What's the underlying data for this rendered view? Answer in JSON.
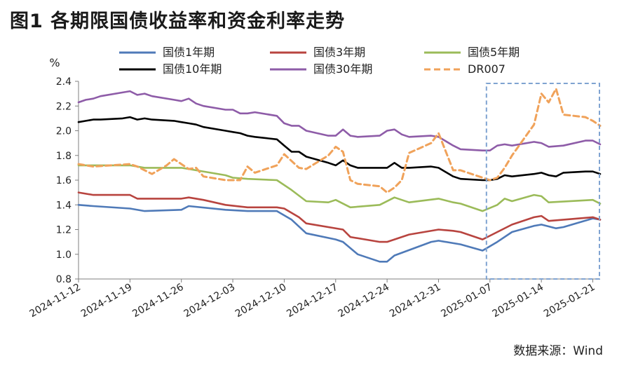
{
  "figure": {
    "title": "图1  各期限国债收益率和资金利率走势",
    "source": "数据来源：Wind"
  },
  "chart_data": {
    "type": "line",
    "ylabel": "%",
    "ylim": [
      0.8,
      2.4
    ],
    "yticks": [
      "0.8",
      "1.0",
      "1.2",
      "1.4",
      "1.6",
      "1.8",
      "2.0",
      "2.2",
      "2.4"
    ],
    "xlim": [
      "2024-11-12",
      "2025-01-22"
    ],
    "xticks": [
      "2024-11-12",
      "2024-11-19",
      "2024-11-26",
      "2024-12-03",
      "2024-12-10",
      "2024-12-17",
      "2024-12-24",
      "2024-12-31",
      "2025-01-07",
      "2025-01-14",
      "2025-01-21"
    ],
    "grid": false,
    "legend_position": "top",
    "highlight_box": {
      "x_from": "2025-01-07",
      "x_to": "2025-01-22",
      "style": "dashed",
      "color": "#7fa3d1"
    },
    "series": [
      {
        "name": "国债1年期",
        "color": "#4f7ab8",
        "dash": "solid",
        "points": [
          [
            "2024-11-12",
            1.4
          ],
          [
            "2024-11-14",
            1.39
          ],
          [
            "2024-11-19",
            1.37
          ],
          [
            "2024-11-21",
            1.35
          ],
          [
            "2024-11-26",
            1.36
          ],
          [
            "2024-11-27",
            1.39
          ],
          [
            "2024-12-02",
            1.36
          ],
          [
            "2024-12-05",
            1.35
          ],
          [
            "2024-12-09",
            1.35
          ],
          [
            "2024-12-11",
            1.28
          ],
          [
            "2024-12-13",
            1.17
          ],
          [
            "2024-12-17",
            1.12
          ],
          [
            "2024-12-18",
            1.1
          ],
          [
            "2024-12-20",
            1.0
          ],
          [
            "2024-12-23",
            0.94
          ],
          [
            "2024-12-24",
            0.94
          ],
          [
            "2024-12-25",
            0.99
          ],
          [
            "2024-12-30",
            1.1
          ],
          [
            "2024-12-31",
            1.11
          ],
          [
            "2025-01-02",
            1.09
          ],
          [
            "2025-01-03",
            1.08
          ],
          [
            "2025-01-06",
            1.03
          ],
          [
            "2025-01-08",
            1.1
          ],
          [
            "2025-01-10",
            1.18
          ],
          [
            "2025-01-13",
            1.23
          ],
          [
            "2025-01-14",
            1.24
          ],
          [
            "2025-01-16",
            1.21
          ],
          [
            "2025-01-17",
            1.22
          ],
          [
            "2025-01-21",
            1.29
          ],
          [
            "2025-01-22",
            1.28
          ]
        ]
      },
      {
        "name": "国债3年期",
        "color": "#b8443f",
        "dash": "solid",
        "points": [
          [
            "2024-11-12",
            1.5
          ],
          [
            "2024-11-14",
            1.48
          ],
          [
            "2024-11-19",
            1.48
          ],
          [
            "2024-11-20",
            1.45
          ],
          [
            "2024-11-26",
            1.45
          ],
          [
            "2024-11-27",
            1.46
          ],
          [
            "2024-11-29",
            1.44
          ],
          [
            "2024-12-02",
            1.4
          ],
          [
            "2024-12-05",
            1.38
          ],
          [
            "2024-12-09",
            1.38
          ],
          [
            "2024-12-10",
            1.37
          ],
          [
            "2024-12-12",
            1.3
          ],
          [
            "2024-12-13",
            1.25
          ],
          [
            "2024-12-18",
            1.2
          ],
          [
            "2024-12-19",
            1.14
          ],
          [
            "2024-12-23",
            1.1
          ],
          [
            "2024-12-24",
            1.1
          ],
          [
            "2024-12-25",
            1.12
          ],
          [
            "2024-12-27",
            1.16
          ],
          [
            "2024-12-31",
            1.2
          ],
          [
            "2025-01-02",
            1.19
          ],
          [
            "2025-01-03",
            1.18
          ],
          [
            "2025-01-06",
            1.12
          ],
          [
            "2025-01-08",
            1.18
          ],
          [
            "2025-01-10",
            1.24
          ],
          [
            "2025-01-13",
            1.3
          ],
          [
            "2025-01-14",
            1.31
          ],
          [
            "2025-01-15",
            1.27
          ],
          [
            "2025-01-17",
            1.28
          ],
          [
            "2025-01-21",
            1.3
          ],
          [
            "2025-01-22",
            1.28
          ]
        ]
      },
      {
        "name": "国债5年期",
        "color": "#9bbb59",
        "dash": "solid",
        "points": [
          [
            "2024-11-12",
            1.72
          ],
          [
            "2024-11-14",
            1.72
          ],
          [
            "2024-11-19",
            1.72
          ],
          [
            "2024-11-21",
            1.7
          ],
          [
            "2024-11-26",
            1.7
          ],
          [
            "2024-11-27",
            1.69
          ],
          [
            "2024-12-02",
            1.64
          ],
          [
            "2024-12-03",
            1.62
          ],
          [
            "2024-12-05",
            1.61
          ],
          [
            "2024-12-09",
            1.6
          ],
          [
            "2024-12-11",
            1.52
          ],
          [
            "2024-12-13",
            1.43
          ],
          [
            "2024-12-16",
            1.42
          ],
          [
            "2024-12-17",
            1.44
          ],
          [
            "2024-12-19",
            1.38
          ],
          [
            "2024-12-23",
            1.4
          ],
          [
            "2024-12-25",
            1.46
          ],
          [
            "2024-12-27",
            1.42
          ],
          [
            "2024-12-31",
            1.45
          ],
          [
            "2025-01-02",
            1.42
          ],
          [
            "2025-01-03",
            1.41
          ],
          [
            "2025-01-06",
            1.35
          ],
          [
            "2025-01-08",
            1.4
          ],
          [
            "2025-01-09",
            1.45
          ],
          [
            "2025-01-10",
            1.43
          ],
          [
            "2025-01-13",
            1.48
          ],
          [
            "2025-01-14",
            1.47
          ],
          [
            "2025-01-15",
            1.42
          ],
          [
            "2025-01-21",
            1.44
          ],
          [
            "2025-01-22",
            1.41
          ]
        ]
      },
      {
        "name": "国债10年期",
        "color": "#000000",
        "dash": "solid",
        "points": [
          [
            "2024-11-12",
            2.07
          ],
          [
            "2024-11-13",
            2.08
          ],
          [
            "2024-11-14",
            2.09
          ],
          [
            "2024-11-15",
            2.09
          ],
          [
            "2024-11-18",
            2.1
          ],
          [
            "2024-11-19",
            2.11
          ],
          [
            "2024-11-20",
            2.09
          ],
          [
            "2024-11-21",
            2.1
          ],
          [
            "2024-11-22",
            2.09
          ],
          [
            "2024-11-25",
            2.08
          ],
          [
            "2024-11-26",
            2.07
          ],
          [
            "2024-11-27",
            2.06
          ],
          [
            "2024-11-28",
            2.05
          ],
          [
            "2024-11-29",
            2.03
          ],
          [
            "2024-12-02",
            2.0
          ],
          [
            "2024-12-03",
            1.99
          ],
          [
            "2024-12-04",
            1.98
          ],
          [
            "2024-12-05",
            1.96
          ],
          [
            "2024-12-06",
            1.95
          ],
          [
            "2024-12-09",
            1.93
          ],
          [
            "2024-12-10",
            1.88
          ],
          [
            "2024-12-11",
            1.83
          ],
          [
            "2024-12-12",
            1.83
          ],
          [
            "2024-12-13",
            1.79
          ],
          [
            "2024-12-16",
            1.74
          ],
          [
            "2024-12-17",
            1.72
          ],
          [
            "2024-12-18",
            1.76
          ],
          [
            "2024-12-19",
            1.72
          ],
          [
            "2024-12-20",
            1.7
          ],
          [
            "2024-12-23",
            1.7
          ],
          [
            "2024-12-24",
            1.7
          ],
          [
            "2024-12-25",
            1.74
          ],
          [
            "2024-12-26",
            1.7
          ],
          [
            "2024-12-27",
            1.7
          ],
          [
            "2024-12-30",
            1.71
          ],
          [
            "2024-12-31",
            1.7
          ],
          [
            "2025-01-02",
            1.63
          ],
          [
            "2025-01-03",
            1.61
          ],
          [
            "2025-01-06",
            1.6
          ],
          [
            "2025-01-07",
            1.6
          ],
          [
            "2025-01-08",
            1.61
          ],
          [
            "2025-01-09",
            1.64
          ],
          [
            "2025-01-10",
            1.63
          ],
          [
            "2025-01-13",
            1.65
          ],
          [
            "2025-01-14",
            1.66
          ],
          [
            "2025-01-15",
            1.64
          ],
          [
            "2025-01-16",
            1.63
          ],
          [
            "2025-01-17",
            1.66
          ],
          [
            "2025-01-20",
            1.67
          ],
          [
            "2025-01-21",
            1.67
          ],
          [
            "2025-01-22",
            1.65
          ]
        ]
      },
      {
        "name": "国债30年期",
        "color": "#8e5ca8",
        "dash": "solid",
        "points": [
          [
            "2024-11-12",
            2.23
          ],
          [
            "2024-11-13",
            2.25
          ],
          [
            "2024-11-14",
            2.26
          ],
          [
            "2024-11-15",
            2.28
          ],
          [
            "2024-11-18",
            2.31
          ],
          [
            "2024-11-19",
            2.32
          ],
          [
            "2024-11-20",
            2.29
          ],
          [
            "2024-11-21",
            2.3
          ],
          [
            "2024-11-22",
            2.28
          ],
          [
            "2024-11-25",
            2.25
          ],
          [
            "2024-11-26",
            2.24
          ],
          [
            "2024-11-27",
            2.26
          ],
          [
            "2024-11-28",
            2.22
          ],
          [
            "2024-11-29",
            2.2
          ],
          [
            "2024-12-02",
            2.17
          ],
          [
            "2024-12-03",
            2.17
          ],
          [
            "2024-12-04",
            2.14
          ],
          [
            "2024-12-05",
            2.14
          ],
          [
            "2024-12-06",
            2.15
          ],
          [
            "2024-12-09",
            2.12
          ],
          [
            "2024-12-10",
            2.06
          ],
          [
            "2024-12-11",
            2.04
          ],
          [
            "2024-12-12",
            2.04
          ],
          [
            "2024-12-13",
            2.0
          ],
          [
            "2024-12-16",
            1.96
          ],
          [
            "2024-12-17",
            1.96
          ],
          [
            "2024-12-18",
            2.01
          ],
          [
            "2024-12-19",
            1.96
          ],
          [
            "2024-12-20",
            1.95
          ],
          [
            "2024-12-23",
            1.96
          ],
          [
            "2024-12-24",
            2.0
          ],
          [
            "2024-12-25",
            2.01
          ],
          [
            "2024-12-26",
            1.97
          ],
          [
            "2024-12-27",
            1.95
          ],
          [
            "2024-12-30",
            1.96
          ],
          [
            "2024-12-31",
            1.95
          ],
          [
            "2025-01-02",
            1.88
          ],
          [
            "2025-01-03",
            1.85
          ],
          [
            "2025-01-06",
            1.84
          ],
          [
            "2025-01-07",
            1.84
          ],
          [
            "2025-01-08",
            1.88
          ],
          [
            "2025-01-09",
            1.89
          ],
          [
            "2025-01-10",
            1.88
          ],
          [
            "2025-01-13",
            1.91
          ],
          [
            "2025-01-14",
            1.9
          ],
          [
            "2025-01-15",
            1.87
          ],
          [
            "2025-01-17",
            1.88
          ],
          [
            "2025-01-20",
            1.92
          ],
          [
            "2025-01-21",
            1.92
          ],
          [
            "2025-01-22",
            1.89
          ]
        ]
      },
      {
        "name": "DR007",
        "color": "#f0a25a",
        "dash": "dashed",
        "points": [
          [
            "2024-11-12",
            1.73
          ],
          [
            "2024-11-14",
            1.71
          ],
          [
            "2024-11-19",
            1.73
          ],
          [
            "2024-11-20",
            1.71
          ],
          [
            "2024-11-22",
            1.65
          ],
          [
            "2024-11-24",
            1.72
          ],
          [
            "2024-11-25",
            1.77
          ],
          [
            "2024-11-26",
            1.73
          ],
          [
            "2024-11-27",
            1.69
          ],
          [
            "2024-11-28",
            1.7
          ],
          [
            "2024-11-29",
            1.63
          ],
          [
            "2024-12-02",
            1.6
          ],
          [
            "2024-12-04",
            1.6
          ],
          [
            "2024-12-05",
            1.71
          ],
          [
            "2024-12-06",
            1.66
          ],
          [
            "2024-12-09",
            1.72
          ],
          [
            "2024-12-10",
            1.81
          ],
          [
            "2024-12-12",
            1.7
          ],
          [
            "2024-12-13",
            1.69
          ],
          [
            "2024-12-16",
            1.8
          ],
          [
            "2024-12-17",
            1.87
          ],
          [
            "2024-12-18",
            1.83
          ],
          [
            "2024-12-19",
            1.6
          ],
          [
            "2024-12-20",
            1.57
          ],
          [
            "2024-12-23",
            1.55
          ],
          [
            "2024-12-24",
            1.5
          ],
          [
            "2024-12-25",
            1.54
          ],
          [
            "2024-12-26",
            1.6
          ],
          [
            "2024-12-27",
            1.82
          ],
          [
            "2024-12-30",
            1.9
          ],
          [
            "2024-12-31",
            1.98
          ],
          [
            "2025-01-02",
            1.68
          ],
          [
            "2025-01-03",
            1.68
          ],
          [
            "2025-01-06",
            1.62
          ],
          [
            "2025-01-07",
            1.6
          ],
          [
            "2025-01-08",
            1.62
          ],
          [
            "2025-01-09",
            1.7
          ],
          [
            "2025-01-10",
            1.8
          ],
          [
            "2025-01-13",
            2.05
          ],
          [
            "2025-01-14",
            2.3
          ],
          [
            "2025-01-15",
            2.23
          ],
          [
            "2025-01-16",
            2.34
          ],
          [
            "2025-01-17",
            2.13
          ],
          [
            "2025-01-20",
            2.11
          ],
          [
            "2025-01-21",
            2.08
          ],
          [
            "2025-01-22",
            2.04
          ]
        ]
      }
    ]
  }
}
